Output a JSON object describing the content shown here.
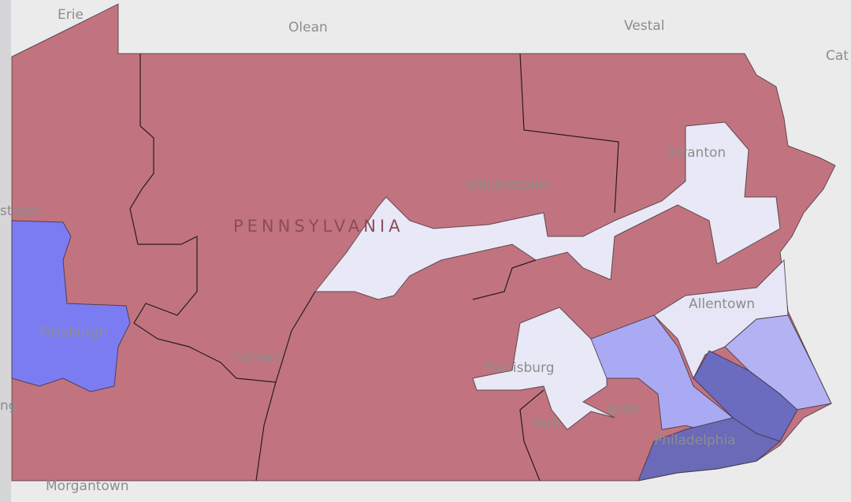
{
  "map": {
    "state_label": "PENNSYLVANIA",
    "places": [
      "Erie",
      "Olean",
      "Vestal",
      "Cat",
      "stown",
      "Williamsport",
      "Scranton",
      "Pittsburgh",
      "nstown",
      "Allentown",
      "Harrisburg",
      "aster",
      "York",
      "Philadelphia",
      "Morgantown",
      "ng"
    ]
  }
}
